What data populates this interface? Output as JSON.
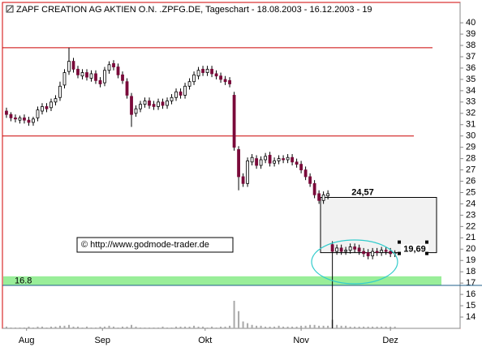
{
  "chart_data": {
    "type": "candlestick",
    "title": "ZAPF CREATION AG AKTIEN O.N. .ZPFG.DE, Tageschart - 18.08.2003 - 16.12.2003 - 19",
    "open": [
      32.2,
      31.9,
      31.6,
      31.4,
      31.6,
      31.4,
      31.2,
      31.6,
      32.2,
      32.6,
      32.5,
      33.0,
      33.4,
      34.5,
      35.7,
      36.6,
      35.9,
      35.3,
      35.6,
      35.1,
      35.5,
      34.9,
      34.7,
      35.8,
      36.4,
      36.1,
      35.4,
      34.8,
      33.5,
      32.0,
      32.4,
      32.8,
      33.1,
      32.8,
      32.6,
      33.0,
      32.7,
      33.1,
      33.4,
      33.9,
      33.6,
      34.4,
      34.8,
      35.3,
      35.9,
      35.6,
      35.9,
      35.5,
      35.3,
      35.0,
      34.9,
      33.6,
      28.8,
      26.4,
      25.8,
      27.7,
      28.0,
      27.4,
      27.9,
      28.3,
      27.6,
      27.8,
      28.0,
      27.9,
      28.1,
      27.7,
      27.5,
      27.0,
      26.4,
      25.8,
      24.9,
      24.3,
      24.7,
      20.4,
      19.8,
      20.1,
      19.8,
      19.9,
      20.2,
      20.1,
      19.8,
      19.7,
      19.4,
      19.8,
      19.7,
      19.9,
      19.8,
      19.6
    ],
    "high": [
      32.5,
      32.1,
      31.9,
      31.8,
      31.9,
      31.7,
      31.7,
      32.6,
      32.9,
      32.9,
      33.3,
      33.6,
      34.8,
      35.9,
      37.8,
      36.9,
      36.2,
      35.9,
      35.9,
      35.8,
      35.8,
      35.2,
      36.1,
      36.6,
      36.7,
      36.4,
      35.7,
      35.1,
      33.8,
      32.7,
      33.1,
      33.4,
      33.4,
      33.1,
      33.3,
      33.3,
      33.4,
      33.7,
      34.2,
      34.2,
      34.7,
      35.1,
      35.7,
      36.1,
      36.2,
      36.2,
      36.2,
      35.8,
      35.6,
      35.3,
      35.2,
      33.9,
      29.1,
      26.7,
      28.1,
      28.4,
      28.3,
      28.2,
      28.5,
      28.6,
      28.1,
      28.3,
      28.3,
      28.4,
      28.4,
      28.0,
      27.8,
      27.3,
      26.7,
      26.1,
      25.2,
      25.1,
      25.2,
      20.7,
      20.4,
      20.4,
      20.2,
      20.5,
      20.5,
      20.4,
      20.1,
      20.0,
      20.1,
      20.1,
      20.2,
      20.2,
      20.1,
      19.9
    ],
    "low": [
      31.6,
      31.3,
      31.2,
      31.1,
      31.1,
      30.9,
      30.9,
      31.3,
      31.9,
      32.1,
      32.2,
      32.7,
      33.1,
      34.2,
      35.4,
      35.6,
      35.1,
      35.0,
      34.9,
      34.8,
      34.6,
      34.3,
      34.4,
      35.5,
      35.8,
      35.1,
      34.6,
      33.3,
      30.8,
      31.7,
      32.1,
      32.5,
      32.4,
      32.3,
      32.3,
      32.4,
      32.4,
      32.8,
      33.1,
      33.3,
      33.3,
      34.1,
      34.5,
      35.0,
      35.3,
      35.3,
      35.2,
      35.0,
      34.7,
      34.5,
      34.3,
      28.7,
      25.2,
      25.5,
      25.5,
      27.4,
      27.1,
      27.1,
      27.6,
      27.3,
      27.3,
      27.5,
      27.6,
      27.6,
      27.4,
      27.2,
      26.7,
      26.1,
      25.5,
      24.5,
      24.0,
      24.0,
      24.4,
      13.0,
      19.5,
      19.5,
      19.5,
      19.6,
      19.7,
      19.5,
      19.3,
      19.1,
      19.1,
      19.4,
      19.4,
      19.5,
      19.3,
      19.3
    ],
    "close": [
      31.9,
      31.6,
      31.5,
      31.6,
      31.4,
      31.2,
      31.5,
      32.3,
      32.6,
      32.4,
      33.0,
      33.3,
      34.4,
      35.6,
      36.6,
      35.9,
      35.4,
      35.6,
      35.2,
      35.5,
      34.9,
      34.6,
      35.8,
      36.3,
      36.1,
      35.4,
      34.9,
      33.6,
      31.9,
      32.4,
      32.8,
      33.1,
      32.7,
      32.6,
      33.0,
      32.7,
      33.1,
      33.4,
      33.9,
      33.6,
      34.4,
      34.8,
      35.4,
      35.8,
      35.6,
      35.9,
      35.5,
      35.3,
      35.0,
      34.8,
      34.6,
      29.0,
      26.4,
      25.8,
      27.8,
      28.1,
      27.4,
      27.9,
      28.2,
      27.6,
      27.8,
      28.0,
      27.9,
      28.1,
      27.7,
      27.5,
      27.0,
      26.4,
      25.8,
      24.8,
      24.3,
      24.8,
      24.9,
      19.8,
      20.1,
      19.8,
      19.9,
      20.2,
      20.0,
      19.8,
      19.6,
      19.4,
      19.8,
      19.7,
      19.9,
      19.8,
      19.6,
      19.7
    ],
    "volume": [
      2,
      1,
      1,
      1,
      1,
      2,
      1,
      2,
      2,
      1,
      2,
      2,
      3,
      3,
      4,
      2,
      2,
      1,
      2,
      1,
      1,
      2,
      2,
      3,
      2,
      1,
      2,
      2,
      4,
      2,
      1,
      1,
      1,
      1,
      1,
      2,
      1,
      1,
      2,
      2,
      2,
      2,
      3,
      2,
      2,
      1,
      2,
      1,
      2,
      2,
      3,
      32,
      20,
      8,
      6,
      4,
      3,
      3,
      2,
      2,
      2,
      3,
      2,
      2,
      2,
      2,
      3,
      3,
      4,
      4,
      3,
      3,
      3,
      10,
      4,
      3,
      3,
      2,
      2,
      2,
      2,
      2,
      2,
      2,
      2,
      2,
      2,
      2
    ],
    "up_color": "#ffffff",
    "down_color": "#7a0a3a",
    "volume_color": "#a8a8a8",
    "xlim": [
      -0.9,
      101.6
    ],
    "xticks": [
      {
        "value": 4.5,
        "label": "Aug"
      },
      {
        "value": 21.5,
        "label": "Sep"
      },
      {
        "value": 44.5,
        "label": "Okt"
      },
      {
        "value": 66,
        "label": "Nov"
      },
      {
        "value": 86,
        "label": "Dez"
      }
    ],
    "ylim": [
      13.0,
      41.8
    ],
    "yticks": [
      14,
      15,
      16,
      17,
      18,
      19,
      20,
      21,
      22,
      23,
      24,
      25,
      26,
      27,
      28,
      29,
      30,
      31,
      32,
      33,
      34,
      35,
      36,
      37,
      38,
      39,
      40
    ],
    "resistance_lines": [
      {
        "value": 37.8,
        "color": "#cc0000"
      },
      {
        "value": 30.0,
        "color": "#cc0000"
      }
    ],
    "support": {
      "low": 16.8,
      "high": 17.6,
      "band_color": "#99ee99",
      "line_color": "#1f5f8b"
    },
    "target_box": {
      "values": [
        24.57,
        19.69
      ],
      "value_labels": [
        "24,57",
        "19,69"
      ]
    },
    "copyright": "© http://www.godmode-trader.de"
  }
}
